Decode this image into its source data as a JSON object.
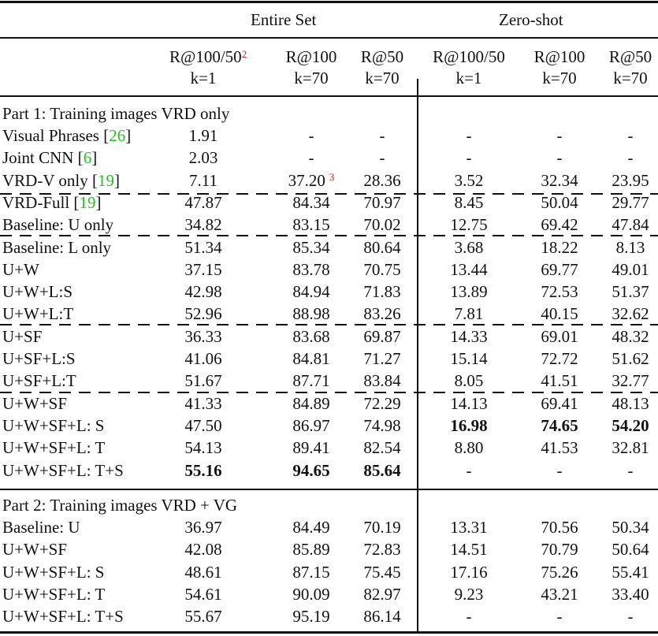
{
  "table": {
    "group_headers": [
      {
        "label": "Entire Set"
      },
      {
        "label": "Zero-shot"
      }
    ],
    "columns": [
      {
        "metric": "R@100/50",
        "footnote": "2",
        "k": "k=1"
      },
      {
        "metric": "R@100",
        "k": "k=70"
      },
      {
        "metric": "R@50",
        "k": "k=70"
      },
      {
        "metric": "R@100/50",
        "k": "k=1"
      },
      {
        "metric": "R@100",
        "k": "k=70"
      },
      {
        "metric": "R@50",
        "k": "k=70"
      }
    ],
    "part1": {
      "title": "Part 1: Training images VRD only",
      "rows": [
        {
          "name": "Visual Phrases [",
          "cite": "26",
          "close": "]",
          "values": [
            "1.91",
            "-",
            "-",
            "-",
            "-",
            "-"
          ]
        },
        {
          "name": "Joint CNN [",
          "cite": "6",
          "close": "]",
          "values": [
            "2.03",
            "-",
            "-",
            "-",
            "-",
            "-"
          ]
        },
        {
          "name": "VRD-V only [",
          "cite": "19",
          "close": "]",
          "values": [
            "7.11",
            "37.20",
            "28.36",
            "3.52",
            "32.34",
            "23.95"
          ],
          "footnote_col1": "3"
        },
        {
          "name": "VRD-Full [",
          "cite": "19",
          "close": "]",
          "values": [
            "47.87",
            "84.34",
            "70.97",
            "8.45",
            "50.04",
            "29.77"
          ]
        },
        {
          "name": "Baseline: U only",
          "values": [
            "34.82",
            "83.15",
            "70.02",
            "12.75",
            "69.42",
            "47.84"
          ]
        },
        {
          "name": "Baseline: L only",
          "values": [
            "51.34",
            "85.34",
            "80.64",
            "3.68",
            "18.22",
            "8.13"
          ]
        },
        {
          "name": "U+W",
          "values": [
            "37.15",
            "83.78",
            "70.75",
            "13.44",
            "69.77",
            "49.01"
          ]
        },
        {
          "name": "U+W+L:S",
          "values": [
            "42.98",
            "84.94",
            "71.83",
            "13.89",
            "72.53",
            "51.37"
          ]
        },
        {
          "name": "U+W+L:T",
          "values": [
            "52.96",
            "88.98",
            "83.26",
            "7.81",
            "40.15",
            "32.62"
          ]
        },
        {
          "name": "U+SF",
          "values": [
            "36.33",
            "83.68",
            "69.87",
            "14.33",
            "69.01",
            "48.32"
          ]
        },
        {
          "name": "U+SF+L:S",
          "values": [
            "41.06",
            "84.81",
            "71.27",
            "15.14",
            "72.72",
            "51.62"
          ]
        },
        {
          "name": "U+SF+L:T",
          "values": [
            "51.67",
            "87.71",
            "83.84",
            "8.05",
            "41.51",
            "32.77"
          ]
        },
        {
          "name": "U+W+SF",
          "values": [
            "41.33",
            "84.89",
            "72.29",
            "14.13",
            "69.41",
            "48.13"
          ]
        },
        {
          "name": "U+W+SF+L: S",
          "values": [
            "47.50",
            "86.97",
            "74.98",
            "16.98",
            "74.65",
            "54.20"
          ],
          "bold": [
            3,
            4,
            5
          ]
        },
        {
          "name": "U+W+SF+L: T",
          "values": [
            "54.13",
            "89.41",
            "82.54",
            "8.80",
            "41.53",
            "32.81"
          ]
        },
        {
          "name": "U+W+SF+L: T+S",
          "values": [
            "55.16",
            "94.65",
            "85.64",
            "-",
            "-",
            "-"
          ],
          "bold": [
            0,
            1,
            2
          ]
        }
      ]
    },
    "part2": {
      "title": "Part 2: Training images VRD + VG",
      "rows": [
        {
          "name": "Baseline: U",
          "values": [
            "36.97",
            "84.49",
            "70.19",
            "13.31",
            "70.56",
            "50.34"
          ]
        },
        {
          "name": "U+W+SF",
          "values": [
            "42.08",
            "85.89",
            "72.83",
            "14.51",
            "70.79",
            "50.64"
          ]
        },
        {
          "name": "U+W+SF+L: S",
          "values": [
            "48.61",
            "87.15",
            "75.45",
            "17.16",
            "75.26",
            "55.41"
          ]
        },
        {
          "name": "U+W+SF+L: T",
          "values": [
            "54.61",
            "90.09",
            "82.97",
            "9.23",
            "43.21",
            "33.40"
          ]
        },
        {
          "name": "U+W+SF+L: T+S",
          "values": [
            "55.67",
            "95.19",
            "86.14",
            "-",
            "-",
            "-"
          ]
        }
      ]
    },
    "colors": {
      "citation": "#22c322",
      "footnote": "#d11a1a",
      "text": "#111111"
    }
  }
}
